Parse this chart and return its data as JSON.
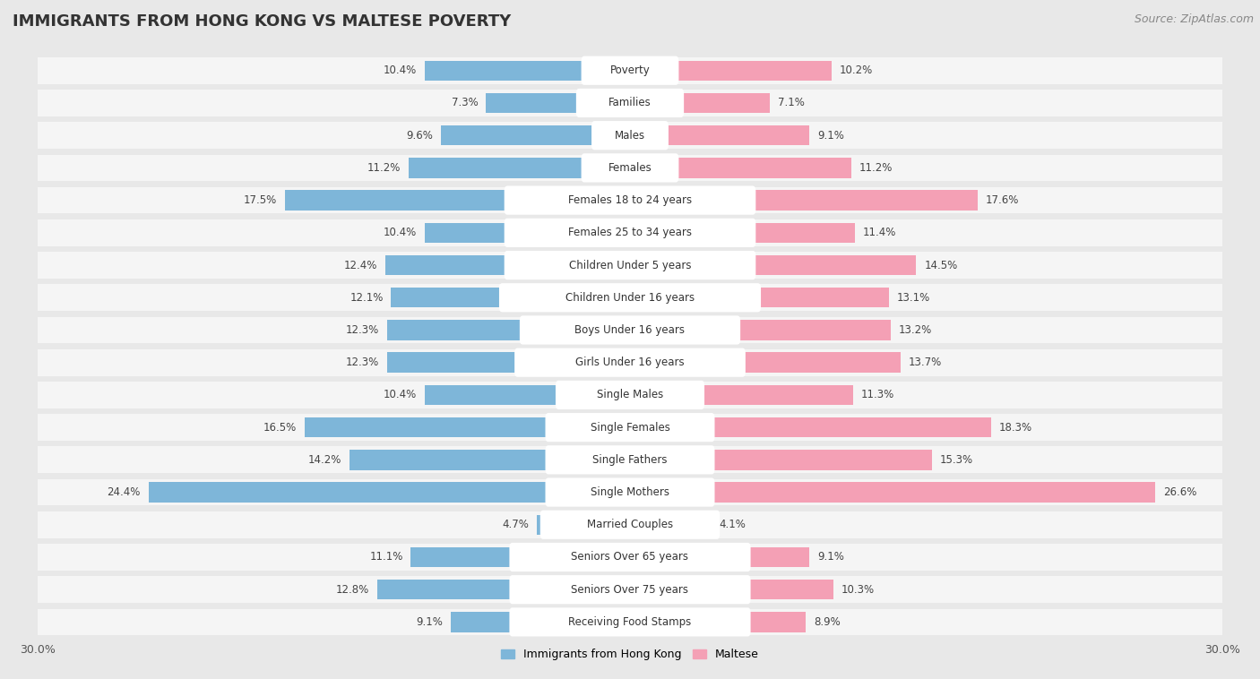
{
  "title": "IMMIGRANTS FROM HONG KONG VS MALTESE POVERTY",
  "source": "Source: ZipAtlas.com",
  "categories": [
    "Poverty",
    "Families",
    "Males",
    "Females",
    "Females 18 to 24 years",
    "Females 25 to 34 years",
    "Children Under 5 years",
    "Children Under 16 years",
    "Boys Under 16 years",
    "Girls Under 16 years",
    "Single Males",
    "Single Females",
    "Single Fathers",
    "Single Mothers",
    "Married Couples",
    "Seniors Over 65 years",
    "Seniors Over 75 years",
    "Receiving Food Stamps"
  ],
  "hong_kong_values": [
    10.4,
    7.3,
    9.6,
    11.2,
    17.5,
    10.4,
    12.4,
    12.1,
    12.3,
    12.3,
    10.4,
    16.5,
    14.2,
    24.4,
    4.7,
    11.1,
    12.8,
    9.1
  ],
  "maltese_values": [
    10.2,
    7.1,
    9.1,
    11.2,
    17.6,
    11.4,
    14.5,
    13.1,
    13.2,
    13.7,
    11.3,
    18.3,
    15.3,
    26.6,
    4.1,
    9.1,
    10.3,
    8.9
  ],
  "hong_kong_color": "#7EB6D9",
  "maltese_color": "#F4A0B5",
  "background_color": "#e8e8e8",
  "row_color_light": "#f5f5f5",
  "row_color_dark": "#e0e0e0",
  "label_bg_color": "#ffffff",
  "x_max": 30.0,
  "legend_labels": [
    "Immigrants from Hong Kong",
    "Maltese"
  ],
  "bar_height": 0.62,
  "title_fontsize": 13,
  "source_fontsize": 9,
  "label_fontsize": 8.5,
  "value_fontsize": 8.5,
  "axis_label_fontsize": 9
}
